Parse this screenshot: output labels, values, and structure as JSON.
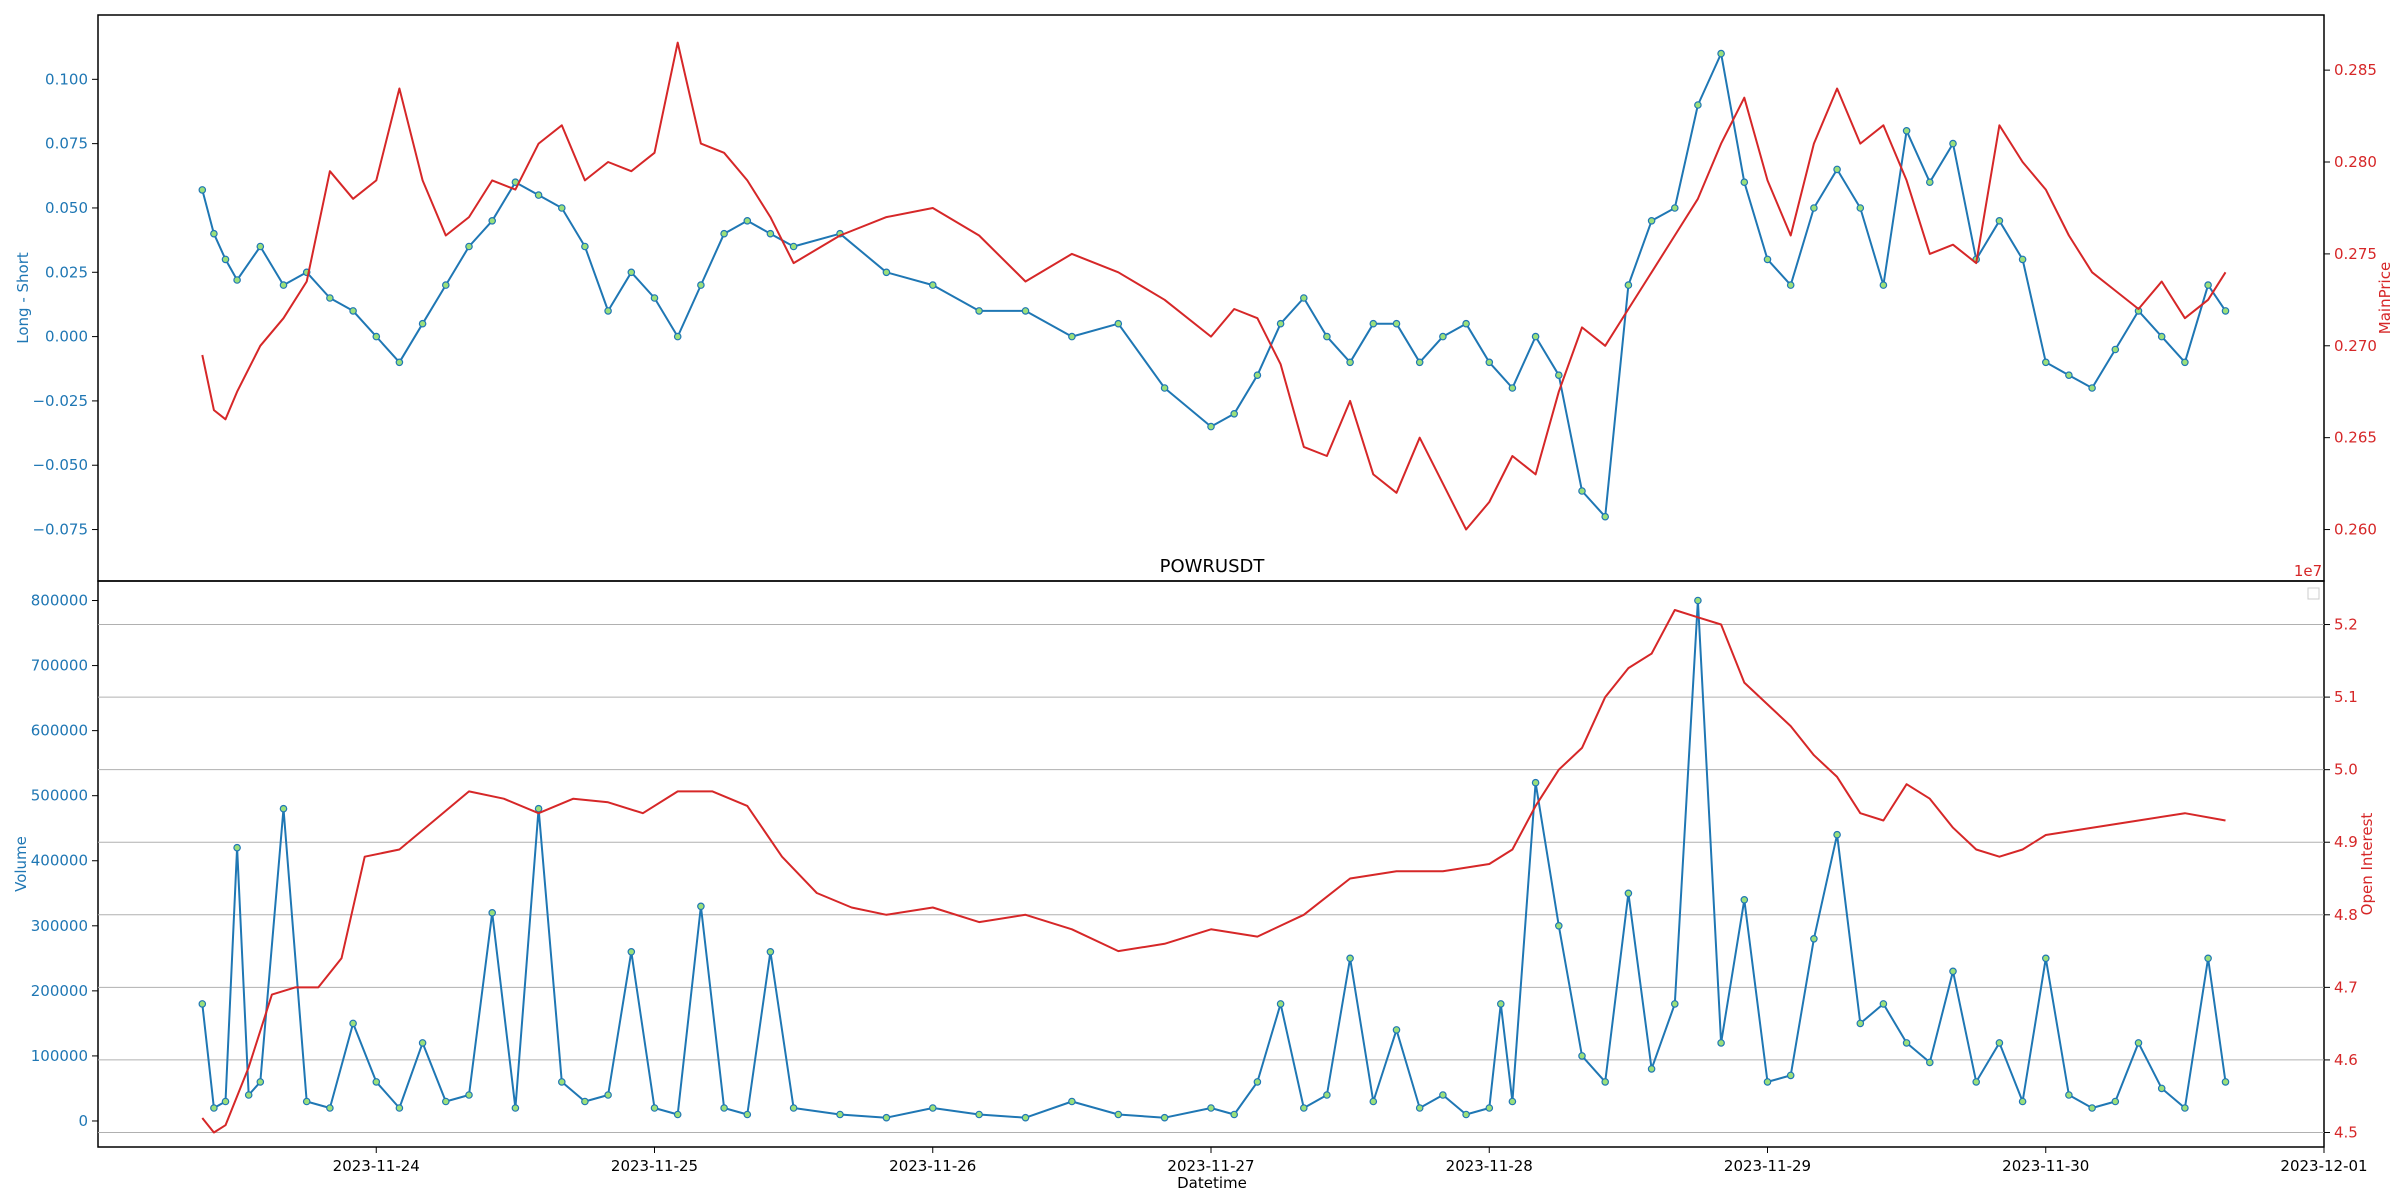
{
  "chart_data": [
    {
      "type": "line",
      "panel": "top",
      "title": "",
      "xlabel": "",
      "ylabel_left": "Long - Short",
      "ylabel_right": "MainPrice",
      "xlim": [
        "2023-11-23 00:00",
        "2023-12-01 00:00"
      ],
      "ylim_left": [
        -0.095,
        0.125
      ],
      "ylim_right": [
        0.2572,
        0.288
      ],
      "yticks_left": [
        -0.075,
        -0.05,
        -0.025,
        0.0,
        0.025,
        0.05,
        0.075,
        0.1
      ],
      "yticks_left_labels": [
        "−0.075",
        "−0.050",
        "−0.025",
        "0.000",
        "0.025",
        "0.050",
        "0.075",
        "0.100"
      ],
      "yticks_right": [
        0.26,
        0.265,
        0.27,
        0.275,
        0.28,
        0.285
      ],
      "yticks_right_labels": [
        "0.260",
        "0.265",
        "0.270",
        "0.275",
        "0.280",
        "0.285"
      ],
      "grid": false,
      "series": [
        {
          "name": "Long - Short",
          "axis": "left",
          "color": "#1f77b4",
          "markers": true,
          "marker_fill": "#9be07a",
          "x": [
            "2023-11-23 09:00",
            "2023-11-23 10:00",
            "2023-11-23 11:00",
            "2023-11-23 12:00",
            "2023-11-23 14:00",
            "2023-11-23 16:00",
            "2023-11-23 18:00",
            "2023-11-23 20:00",
            "2023-11-23 22:00",
            "2023-11-24 00:00",
            "2023-11-24 02:00",
            "2023-11-24 04:00",
            "2023-11-24 06:00",
            "2023-11-24 08:00",
            "2023-11-24 10:00",
            "2023-11-24 12:00",
            "2023-11-24 14:00",
            "2023-11-24 16:00",
            "2023-11-24 18:00",
            "2023-11-24 20:00",
            "2023-11-24 22:00",
            "2023-11-25 00:00",
            "2023-11-25 02:00",
            "2023-11-25 04:00",
            "2023-11-25 06:00",
            "2023-11-25 08:00",
            "2023-11-25 10:00",
            "2023-11-25 12:00",
            "2023-11-25 16:00",
            "2023-11-25 20:00",
            "2023-11-26 00:00",
            "2023-11-26 04:00",
            "2023-11-26 08:00",
            "2023-11-26 12:00",
            "2023-11-26 16:00",
            "2023-11-26 20:00",
            "2023-11-27 00:00",
            "2023-11-27 02:00",
            "2023-11-27 04:00",
            "2023-11-27 06:00",
            "2023-11-27 08:00",
            "2023-11-27 10:00",
            "2023-11-27 12:00",
            "2023-11-27 14:00",
            "2023-11-27 16:00",
            "2023-11-27 18:00",
            "2023-11-27 20:00",
            "2023-11-27 22:00",
            "2023-11-28 00:00",
            "2023-11-28 02:00",
            "2023-11-28 04:00",
            "2023-11-28 06:00",
            "2023-11-28 08:00",
            "2023-11-28 10:00",
            "2023-11-28 12:00",
            "2023-11-28 14:00",
            "2023-11-28 16:00",
            "2023-11-28 18:00",
            "2023-11-28 20:00",
            "2023-11-28 22:00",
            "2023-11-29 00:00",
            "2023-11-29 02:00",
            "2023-11-29 04:00",
            "2023-11-29 06:00",
            "2023-11-29 08:00",
            "2023-11-29 10:00",
            "2023-11-29 12:00",
            "2023-11-29 14:00",
            "2023-11-29 16:00",
            "2023-11-29 18:00",
            "2023-11-29 20:00",
            "2023-11-29 22:00",
            "2023-11-30 00:00",
            "2023-11-30 02:00",
            "2023-11-30 04:00",
            "2023-11-30 06:00",
            "2023-11-30 08:00",
            "2023-11-30 10:00",
            "2023-11-30 12:00",
            "2023-11-30 14:00",
            "2023-11-30 15:30"
          ],
          "values": [
            0.057,
            0.04,
            0.03,
            0.022,
            0.035,
            0.02,
            0.025,
            0.015,
            0.01,
            0.0,
            -0.01,
            0.005,
            0.02,
            0.035,
            0.045,
            0.06,
            0.055,
            0.05,
            0.035,
            0.01,
            0.025,
            0.015,
            0.0,
            0.02,
            0.04,
            0.045,
            0.04,
            0.035,
            0.04,
            0.025,
            0.02,
            0.01,
            0.01,
            0.0,
            0.005,
            -0.02,
            -0.035,
            -0.03,
            -0.015,
            0.005,
            0.015,
            0.0,
            -0.01,
            0.005,
            0.005,
            -0.01,
            0.0,
            0.005,
            -0.01,
            -0.02,
            0.0,
            -0.015,
            -0.06,
            -0.07,
            0.02,
            0.045,
            0.05,
            0.09,
            0.11,
            0.06,
            0.03,
            0.02,
            0.05,
            0.065,
            0.05,
            0.02,
            0.08,
            0.06,
            0.075,
            0.03,
            0.045,
            0.03,
            -0.01,
            -0.015,
            -0.02,
            -0.005,
            0.01,
            0.0,
            -0.01,
            0.02,
            0.01
          ]
        },
        {
          "name": "MainPrice",
          "axis": "right",
          "color": "#d62728",
          "markers": false,
          "x": [
            "2023-11-23 09:00",
            "2023-11-23 10:00",
            "2023-11-23 11:00",
            "2023-11-23 12:00",
            "2023-11-23 14:00",
            "2023-11-23 16:00",
            "2023-11-23 18:00",
            "2023-11-23 20:00",
            "2023-11-23 22:00",
            "2023-11-24 00:00",
            "2023-11-24 02:00",
            "2023-11-24 04:00",
            "2023-11-24 06:00",
            "2023-11-24 08:00",
            "2023-11-24 10:00",
            "2023-11-24 12:00",
            "2023-11-24 14:00",
            "2023-11-24 16:00",
            "2023-11-24 18:00",
            "2023-11-24 20:00",
            "2023-11-24 22:00",
            "2023-11-25 00:00",
            "2023-11-25 02:00",
            "2023-11-25 04:00",
            "2023-11-25 06:00",
            "2023-11-25 08:00",
            "2023-11-25 10:00",
            "2023-11-25 12:00",
            "2023-11-25 16:00",
            "2023-11-25 20:00",
            "2023-11-26 00:00",
            "2023-11-26 04:00",
            "2023-11-26 08:00",
            "2023-11-26 12:00",
            "2023-11-26 16:00",
            "2023-11-26 20:00",
            "2023-11-27 00:00",
            "2023-11-27 02:00",
            "2023-11-27 04:00",
            "2023-11-27 06:00",
            "2023-11-27 08:00",
            "2023-11-27 10:00",
            "2023-11-27 12:00",
            "2023-11-27 14:00",
            "2023-11-27 16:00",
            "2023-11-27 18:00",
            "2023-11-27 20:00",
            "2023-11-27 22:00",
            "2023-11-28 00:00",
            "2023-11-28 02:00",
            "2023-11-28 04:00",
            "2023-11-28 06:00",
            "2023-11-28 08:00",
            "2023-11-28 10:00",
            "2023-11-28 12:00",
            "2023-11-28 14:00",
            "2023-11-28 16:00",
            "2023-11-28 18:00",
            "2023-11-28 20:00",
            "2023-11-28 22:00",
            "2023-11-29 00:00",
            "2023-11-29 02:00",
            "2023-11-29 04:00",
            "2023-11-29 06:00",
            "2023-11-29 08:00",
            "2023-11-29 10:00",
            "2023-11-29 12:00",
            "2023-11-29 14:00",
            "2023-11-29 16:00",
            "2023-11-29 18:00",
            "2023-11-29 20:00",
            "2023-11-29 22:00",
            "2023-11-30 00:00",
            "2023-11-30 02:00",
            "2023-11-30 04:00",
            "2023-11-30 06:00",
            "2023-11-30 08:00",
            "2023-11-30 10:00",
            "2023-11-30 12:00",
            "2023-11-30 14:00",
            "2023-11-30 15:30"
          ],
          "values": [
            0.2695,
            0.2665,
            0.266,
            0.2675,
            0.27,
            0.2715,
            0.2735,
            0.2795,
            0.278,
            0.279,
            0.284,
            0.279,
            0.276,
            0.277,
            0.279,
            0.2785,
            0.281,
            0.282,
            0.279,
            0.28,
            0.2795,
            0.2805,
            0.2865,
            0.281,
            0.2805,
            0.279,
            0.277,
            0.2745,
            0.276,
            0.277,
            0.2775,
            0.276,
            0.2735,
            0.275,
            0.274,
            0.2725,
            0.2705,
            0.272,
            0.2715,
            0.269,
            0.2645,
            0.264,
            0.267,
            0.263,
            0.262,
            0.265,
            0.2625,
            0.26,
            0.2615,
            0.264,
            0.263,
            0.2675,
            0.271,
            0.27,
            0.272,
            0.274,
            0.276,
            0.278,
            0.281,
            0.2835,
            0.279,
            0.276,
            0.281,
            0.284,
            0.281,
            0.282,
            0.279,
            0.275,
            0.2755,
            0.2745,
            0.282,
            0.28,
            0.2785,
            0.276,
            0.274,
            0.273,
            0.272,
            0.2735,
            0.2715,
            0.2725,
            0.274
          ]
        }
      ]
    },
    {
      "type": "line",
      "panel": "bottom",
      "title": "POWRUSDT",
      "xlabel": "Datetime",
      "ylabel_left": "Volume",
      "ylabel_right": "Open Interest",
      "right_axis_offset_label": "1e7",
      "xlim": [
        "2023-11-23 00:00",
        "2023-12-01 00:00"
      ],
      "ylim_left": [
        -40000,
        830000
      ],
      "ylim_right": [
        4.48,
        5.26
      ],
      "yticks_left": [
        0,
        100000,
        200000,
        300000,
        400000,
        500000,
        600000,
        700000,
        800000
      ],
      "yticks_left_labels": [
        "0",
        "100000",
        "200000",
        "300000",
        "400000",
        "500000",
        "600000",
        "700000",
        "800000"
      ],
      "yticks_right": [
        4.5,
        4.6,
        4.7,
        4.8,
        4.9,
        5.0,
        5.1,
        5.2
      ],
      "yticks_right_labels": [
        "4.5",
        "4.6",
        "4.7",
        "4.8",
        "4.9",
        "5.0",
        "5.1",
        "5.2"
      ],
      "xticks": [
        "2023-11-24",
        "2023-11-25",
        "2023-11-26",
        "2023-11-27",
        "2023-11-28",
        "2023-11-29",
        "2023-11-30",
        "2023-12-01"
      ],
      "grid": "horizontal (right axis)",
      "legend": "top-right",
      "series": [
        {
          "name": "Volume",
          "axis": "left",
          "color": "#1f77b4",
          "markers": true,
          "marker_fill": "#9be07a",
          "x": [
            "2023-11-23 09:00",
            "2023-11-23 10:00",
            "2023-11-23 11:00",
            "2023-11-23 12:00",
            "2023-11-23 13:00",
            "2023-11-23 14:00",
            "2023-11-23 16:00",
            "2023-11-23 18:00",
            "2023-11-23 20:00",
            "2023-11-23 22:00",
            "2023-11-24 00:00",
            "2023-11-24 02:00",
            "2023-11-24 04:00",
            "2023-11-24 06:00",
            "2023-11-24 08:00",
            "2023-11-24 10:00",
            "2023-11-24 12:00",
            "2023-11-24 14:00",
            "2023-11-24 16:00",
            "2023-11-24 18:00",
            "2023-11-24 20:00",
            "2023-11-24 22:00",
            "2023-11-25 00:00",
            "2023-11-25 02:00",
            "2023-11-25 04:00",
            "2023-11-25 06:00",
            "2023-11-25 08:00",
            "2023-11-25 10:00",
            "2023-11-25 12:00",
            "2023-11-25 16:00",
            "2023-11-25 20:00",
            "2023-11-26 00:00",
            "2023-11-26 04:00",
            "2023-11-26 08:00",
            "2023-11-26 12:00",
            "2023-11-26 16:00",
            "2023-11-26 20:00",
            "2023-11-27 00:00",
            "2023-11-27 02:00",
            "2023-11-27 04:00",
            "2023-11-27 06:00",
            "2023-11-27 08:00",
            "2023-11-27 10:00",
            "2023-11-27 12:00",
            "2023-11-27 14:00",
            "2023-11-27 16:00",
            "2023-11-27 18:00",
            "2023-11-27 20:00",
            "2023-11-27 22:00",
            "2023-11-28 00:00",
            "2023-11-28 01:00",
            "2023-11-28 02:00",
            "2023-11-28 04:00",
            "2023-11-28 06:00",
            "2023-11-28 08:00",
            "2023-11-28 10:00",
            "2023-11-28 12:00",
            "2023-11-28 14:00",
            "2023-11-28 16:00",
            "2023-11-28 18:00",
            "2023-11-28 20:00",
            "2023-11-28 22:00",
            "2023-11-29 00:00",
            "2023-11-29 02:00",
            "2023-11-29 04:00",
            "2023-11-29 06:00",
            "2023-11-29 08:00",
            "2023-11-29 10:00",
            "2023-11-29 12:00",
            "2023-11-29 14:00",
            "2023-11-29 16:00",
            "2023-11-29 18:00",
            "2023-11-29 20:00",
            "2023-11-29 22:00",
            "2023-11-30 00:00",
            "2023-11-30 02:00",
            "2023-11-30 04:00",
            "2023-11-30 06:00",
            "2023-11-30 08:00",
            "2023-11-30 10:00",
            "2023-11-30 12:00",
            "2023-11-30 14:00",
            "2023-11-30 15:30"
          ],
          "values": [
            180000,
            20000,
            30000,
            420000,
            40000,
            60000,
            480000,
            30000,
            20000,
            150000,
            60000,
            20000,
            120000,
            30000,
            40000,
            320000,
            20000,
            480000,
            60000,
            30000,
            40000,
            260000,
            20000,
            10000,
            330000,
            20000,
            10000,
            260000,
            20000,
            10000,
            5000,
            20000,
            10000,
            5000,
            30000,
            10000,
            5000,
            20000,
            10000,
            60000,
            180000,
            20000,
            40000,
            250000,
            30000,
            140000,
            20000,
            40000,
            10000,
            20000,
            180000,
            30000,
            520000,
            300000,
            100000,
            60000,
            350000,
            80000,
            180000,
            800000,
            120000,
            340000,
            60000,
            70000,
            280000,
            440000,
            150000,
            180000,
            120000,
            90000,
            230000,
            60000,
            120000,
            30000,
            250000,
            40000,
            20000,
            30000,
            120000,
            50000,
            20000,
            250000,
            60000
          ]
        },
        {
          "name": "Open Interest",
          "axis": "right",
          "color": "#d62728",
          "markers": false,
          "x": [
            "2023-11-23 09:00",
            "2023-11-23 10:00",
            "2023-11-23 11:00",
            "2023-11-23 13:00",
            "2023-11-23 15:00",
            "2023-11-23 17:00",
            "2023-11-23 19:00",
            "2023-11-23 21:00",
            "2023-11-23 23:00",
            "2023-11-24 02:00",
            "2023-11-24 05:00",
            "2023-11-24 08:00",
            "2023-11-24 11:00",
            "2023-11-24 14:00",
            "2023-11-24 17:00",
            "2023-11-24 20:00",
            "2023-11-24 23:00",
            "2023-11-25 02:00",
            "2023-11-25 05:00",
            "2023-11-25 08:00",
            "2023-11-25 11:00",
            "2023-11-25 14:00",
            "2023-11-25 17:00",
            "2023-11-25 20:00",
            "2023-11-26 00:00",
            "2023-11-26 04:00",
            "2023-11-26 08:00",
            "2023-11-26 12:00",
            "2023-11-26 16:00",
            "2023-11-26 20:00",
            "2023-11-27 00:00",
            "2023-11-27 04:00",
            "2023-11-27 08:00",
            "2023-11-27 12:00",
            "2023-11-27 16:00",
            "2023-11-27 20:00",
            "2023-11-28 00:00",
            "2023-11-28 02:00",
            "2023-11-28 04:00",
            "2023-11-28 06:00",
            "2023-11-28 08:00",
            "2023-11-28 10:00",
            "2023-11-28 12:00",
            "2023-11-28 14:00",
            "2023-11-28 16:00",
            "2023-11-28 18:00",
            "2023-11-28 20:00",
            "2023-11-28 22:00",
            "2023-11-29 00:00",
            "2023-11-29 02:00",
            "2023-11-29 04:00",
            "2023-11-29 06:00",
            "2023-11-29 08:00",
            "2023-11-29 10:00",
            "2023-11-29 12:00",
            "2023-11-29 14:00",
            "2023-11-29 16:00",
            "2023-11-29 18:00",
            "2023-11-29 20:00",
            "2023-11-29 22:00",
            "2023-11-30 00:00",
            "2023-11-30 04:00",
            "2023-11-30 08:00",
            "2023-11-30 12:00",
            "2023-11-30 15:30"
          ],
          "values": [
            4.52,
            4.5,
            4.51,
            4.59,
            4.69,
            4.7,
            4.7,
            4.74,
            4.88,
            4.89,
            4.93,
            4.97,
            4.96,
            4.94,
            4.96,
            4.955,
            4.94,
            4.97,
            4.97,
            4.95,
            4.88,
            4.83,
            4.81,
            4.8,
            4.81,
            4.79,
            4.8,
            4.78,
            4.75,
            4.76,
            4.78,
            4.77,
            4.8,
            4.85,
            4.86,
            4.86,
            4.87,
            4.89,
            4.95,
            5.0,
            5.03,
            5.1,
            5.14,
            5.16,
            5.22,
            5.21,
            5.2,
            5.12,
            5.09,
            5.06,
            5.02,
            4.99,
            4.94,
            4.93,
            4.98,
            4.96,
            4.92,
            4.89,
            4.88,
            4.89,
            4.91,
            4.92,
            4.93,
            4.94,
            4.93
          ]
        }
      ]
    }
  ]
}
